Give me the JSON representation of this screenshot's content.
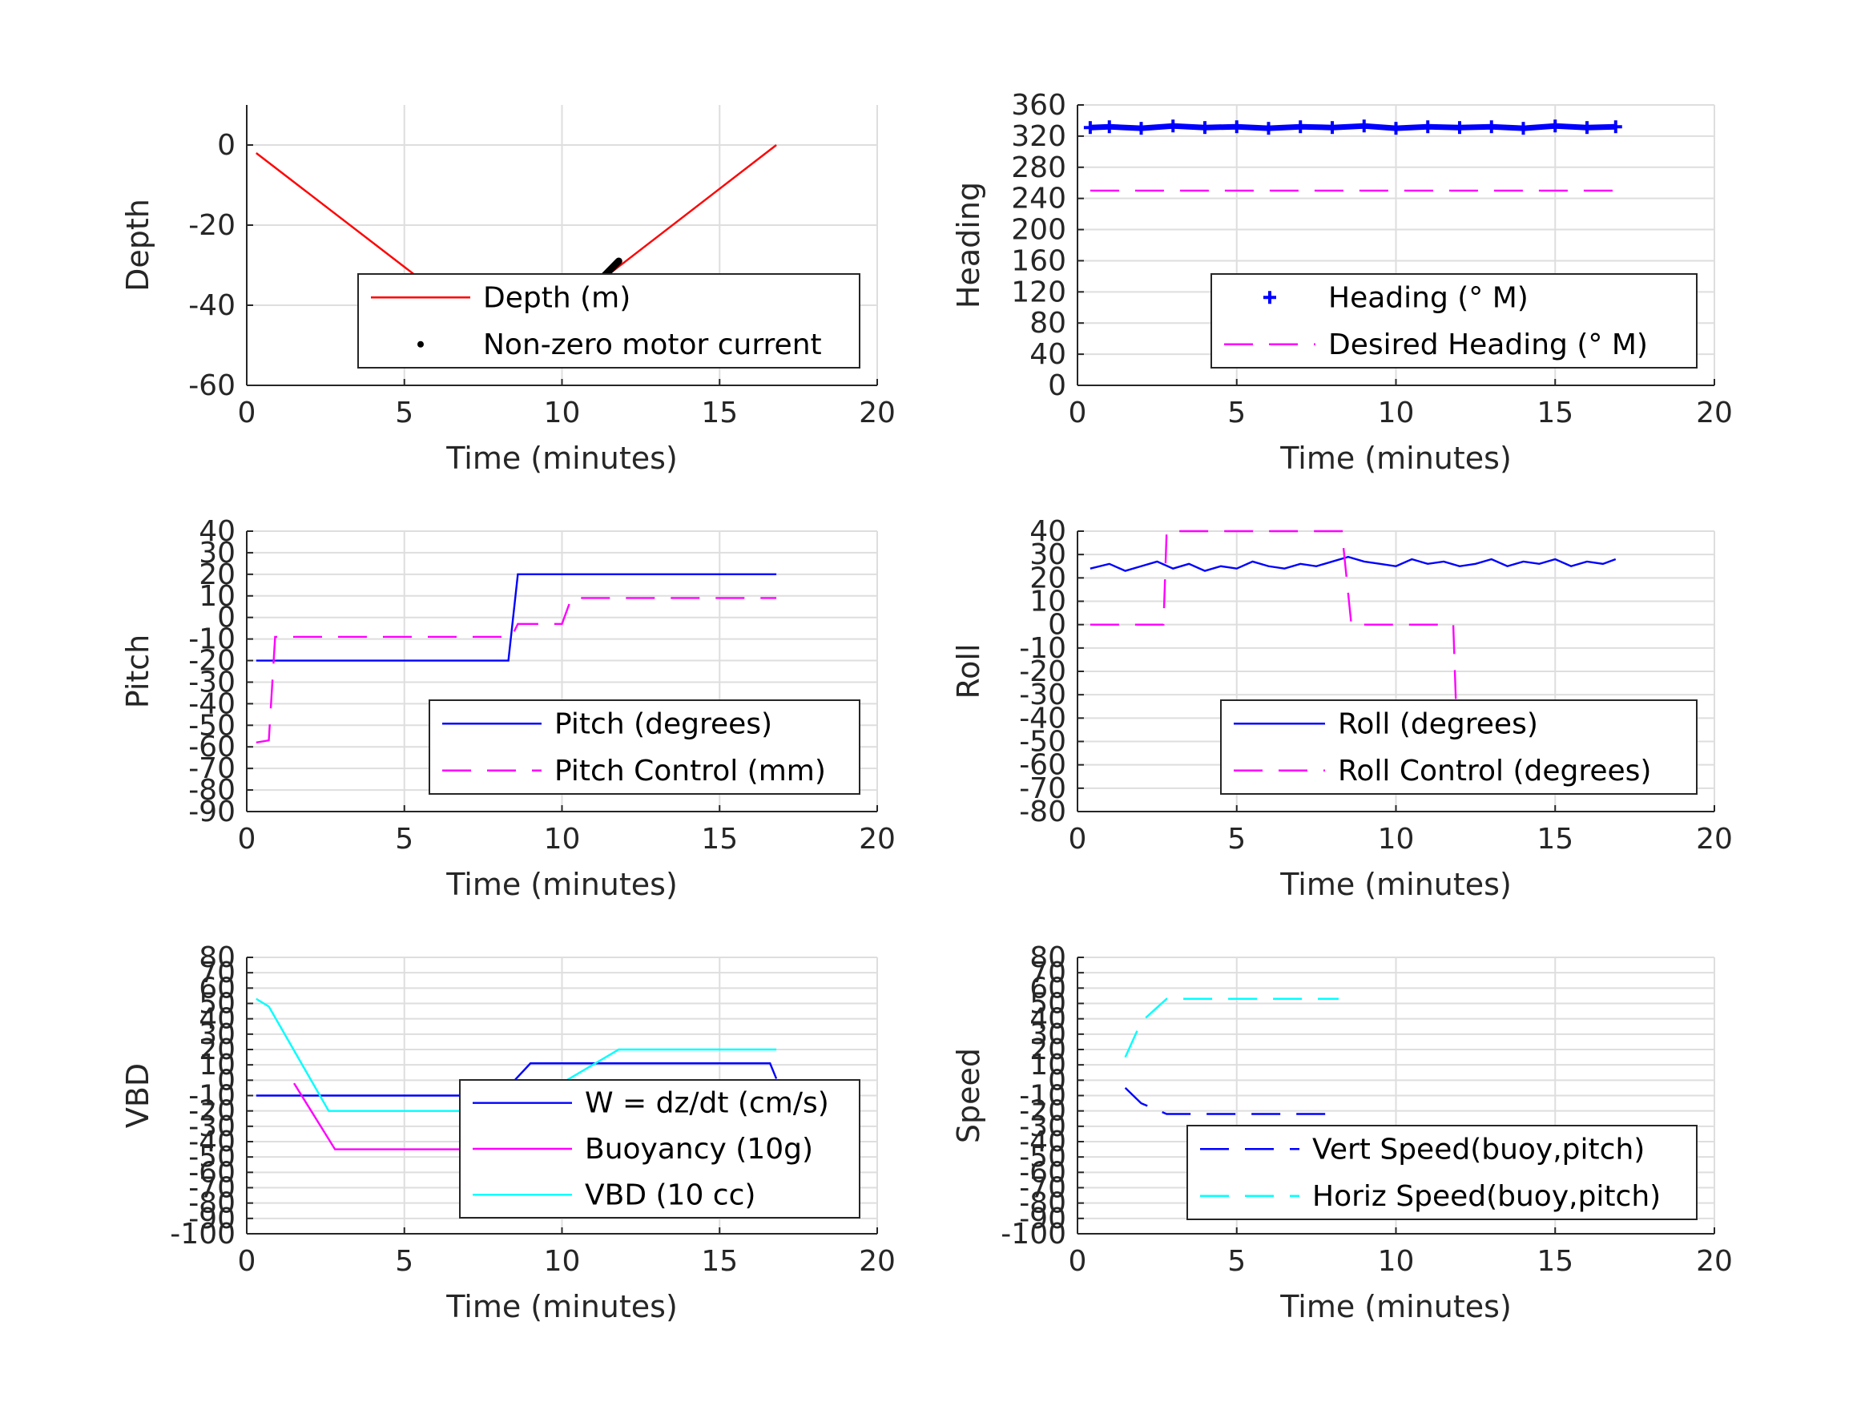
{
  "figure": {
    "background": "#ffffff",
    "grid": true,
    "gridColor": "#dedede",
    "axisColor": "#262626"
  },
  "chart_data": [
    {
      "id": "depth",
      "type": "line",
      "xlabel": "Time (minutes)",
      "ylabel": "Depth",
      "xlim": [
        0,
        20
      ],
      "ylim": [
        -60,
        10
      ],
      "xticks": [
        0,
        5,
        10,
        15,
        20
      ],
      "yticks": [
        -60,
        -40,
        -20,
        0
      ],
      "legend": "lower-right",
      "series": [
        {
          "name": "Depth (m)",
          "style": "solid",
          "color": "#ff0000",
          "x": [
            0.3,
            8.4,
            16.8
          ],
          "y": [
            -2,
            -51,
            0
          ]
        },
        {
          "name": "Non-zero motor current",
          "style": "dots",
          "color": "#000000",
          "x": [
            8.7,
            9.3,
            10.0,
            10.7,
            11.3,
            11.8
          ],
          "y": [
            -49,
            -45,
            -41,
            -37,
            -33,
            -29
          ]
        }
      ]
    },
    {
      "id": "heading",
      "type": "line",
      "xlabel": "Time (minutes)",
      "ylabel": "Heading",
      "xlim": [
        0,
        20
      ],
      "ylim": [
        0,
        360
      ],
      "xticks": [
        0,
        5,
        10,
        15,
        20
      ],
      "yticks": [
        0,
        40,
        80,
        120,
        160,
        200,
        240,
        280,
        320,
        360
      ],
      "legend": "lower-right",
      "series": [
        {
          "name": "Heading (° M)",
          "style": "plus",
          "color": "#0000ff",
          "x": [
            0.4,
            1,
            2,
            3,
            4,
            5,
            6,
            7,
            8,
            9,
            10,
            11,
            12,
            13,
            14,
            15,
            16,
            16.9
          ],
          "y": [
            331,
            332,
            330,
            333,
            331,
            332,
            330,
            332,
            331,
            333,
            330,
            332,
            331,
            332,
            330,
            333,
            331,
            332
          ]
        },
        {
          "name": "Desired Heading (° M)",
          "style": "dashed",
          "color": "#ff00ff",
          "x": [
            0.4,
            16.9
          ],
          "y": [
            250,
            250
          ]
        }
      ]
    },
    {
      "id": "pitch",
      "type": "line",
      "xlabel": "Time (minutes)",
      "ylabel": "Pitch",
      "xlim": [
        0,
        20
      ],
      "ylim": [
        -90,
        40
      ],
      "xticks": [
        0,
        5,
        10,
        15,
        20
      ],
      "yticks": [
        -90,
        -80,
        -70,
        -60,
        -50,
        -40,
        -30,
        -20,
        -10,
        0,
        10,
        20,
        30,
        40
      ],
      "legend": "lower-right",
      "series": [
        {
          "name": "Pitch (degrees)",
          "style": "solid",
          "color": "#0000ff",
          "x": [
            0.3,
            8.3,
            8.6,
            16.8
          ],
          "y": [
            -20,
            -20,
            20,
            20
          ]
        },
        {
          "name": "Pitch Control (mm)",
          "style": "dashed",
          "color": "#ff00ff",
          "x": [
            0.3,
            0.7,
            0.9,
            8.4,
            8.6,
            10.0,
            10.3,
            16.8
          ],
          "y": [
            -58,
            -57,
            -9,
            -9,
            -3,
            -3,
            9,
            9
          ]
        }
      ]
    },
    {
      "id": "roll",
      "type": "line",
      "xlabel": "Time (minutes)",
      "ylabel": "Roll",
      "xlim": [
        0,
        20
      ],
      "ylim": [
        -80,
        40
      ],
      "xticks": [
        0,
        5,
        10,
        15,
        20
      ],
      "yticks": [
        -80,
        -70,
        -60,
        -50,
        -40,
        -30,
        -20,
        -10,
        0,
        10,
        20,
        30,
        40
      ],
      "legend": "lower-right",
      "series": [
        {
          "name": "Roll (degrees)",
          "style": "solid",
          "color": "#0000ff",
          "x": [
            0.4,
            1,
            1.5,
            2,
            2.5,
            3,
            3.5,
            4,
            4.5,
            5,
            5.5,
            6,
            6.5,
            7,
            7.5,
            8,
            8.5,
            9,
            9.5,
            10,
            10.5,
            11,
            11.5,
            12,
            12.5,
            13,
            13.5,
            14,
            14.5,
            15,
            15.5,
            16,
            16.5,
            16.9
          ],
          "y": [
            24,
            26,
            23,
            25,
            27,
            24,
            26,
            23,
            25,
            24,
            27,
            25,
            24,
            26,
            25,
            27,
            29,
            27,
            26,
            25,
            28,
            26,
            27,
            25,
            26,
            28,
            25,
            27,
            26,
            28,
            25,
            27,
            26,
            28
          ]
        },
        {
          "name": "Roll Control (degrees)",
          "style": "dashed",
          "color": "#ff00ff",
          "x": [
            0.4,
            2.7,
            2.8,
            8.3,
            8.6,
            11.8,
            11.9,
            16.9
          ],
          "y": [
            0,
            0,
            40,
            40,
            0,
            0,
            -40,
            -40
          ]
        }
      ]
    },
    {
      "id": "vbd",
      "type": "line",
      "xlabel": "Time (minutes)",
      "ylabel": "VBD",
      "xlim": [
        0,
        20
      ],
      "ylim": [
        -100,
        80
      ],
      "xticks": [
        0,
        5,
        10,
        15,
        20
      ],
      "yticks": [
        -100,
        -90,
        -80,
        -70,
        -60,
        -50,
        -40,
        -30,
        -20,
        -10,
        0,
        10,
        20,
        30,
        40,
        50,
        60,
        70,
        80
      ],
      "legend": "lower-right",
      "series": [
        {
          "name": "W = dz/dt (cm/s)",
          "style": "solid",
          "color": "#0000ff",
          "x": [
            0.3,
            8.2,
            8.5,
            9,
            12,
            16.6,
            16.8
          ],
          "y": [
            -10,
            -10,
            0,
            11,
            11,
            11,
            1
          ]
        },
        {
          "name": "Buoyancy (10g)",
          "style": "solid",
          "color": "#ff00ff",
          "x": [
            1.5,
            2.8,
            8.2
          ],
          "y": [
            -2,
            -45,
            -45
          ]
        },
        {
          "name": "VBD (10 cc)",
          "style": "solid",
          "color": "#00ffff",
          "x": [
            0.3,
            0.7,
            2.6,
            8.5,
            11.8,
            16.8
          ],
          "y": [
            53,
            48,
            -20,
            -20,
            20,
            20
          ]
        }
      ]
    },
    {
      "id": "speed",
      "type": "line",
      "xlabel": "Time (minutes)",
      "ylabel": "Speed",
      "xlim": [
        0,
        20
      ],
      "ylim": [
        -100,
        80
      ],
      "xticks": [
        0,
        5,
        10,
        15,
        20
      ],
      "yticks": [
        -100,
        -90,
        -80,
        -70,
        -60,
        -50,
        -40,
        -30,
        -20,
        -10,
        0,
        10,
        20,
        30,
        40,
        50,
        60,
        70,
        80
      ],
      "legend": "lower-right",
      "series": [
        {
          "name": "Vert Speed(buoy,pitch)",
          "style": "dashed",
          "color": "#0000ff",
          "x": [
            1.5,
            2.0,
            2.8,
            8.2
          ],
          "y": [
            -5,
            -15,
            -22,
            -22
          ]
        },
        {
          "name": "Horiz Speed(buoy,pitch)",
          "style": "dashed",
          "color": "#00ffff",
          "x": [
            1.5,
            2.0,
            2.8,
            8.2
          ],
          "y": [
            15,
            38,
            53,
            53
          ]
        }
      ]
    }
  ]
}
